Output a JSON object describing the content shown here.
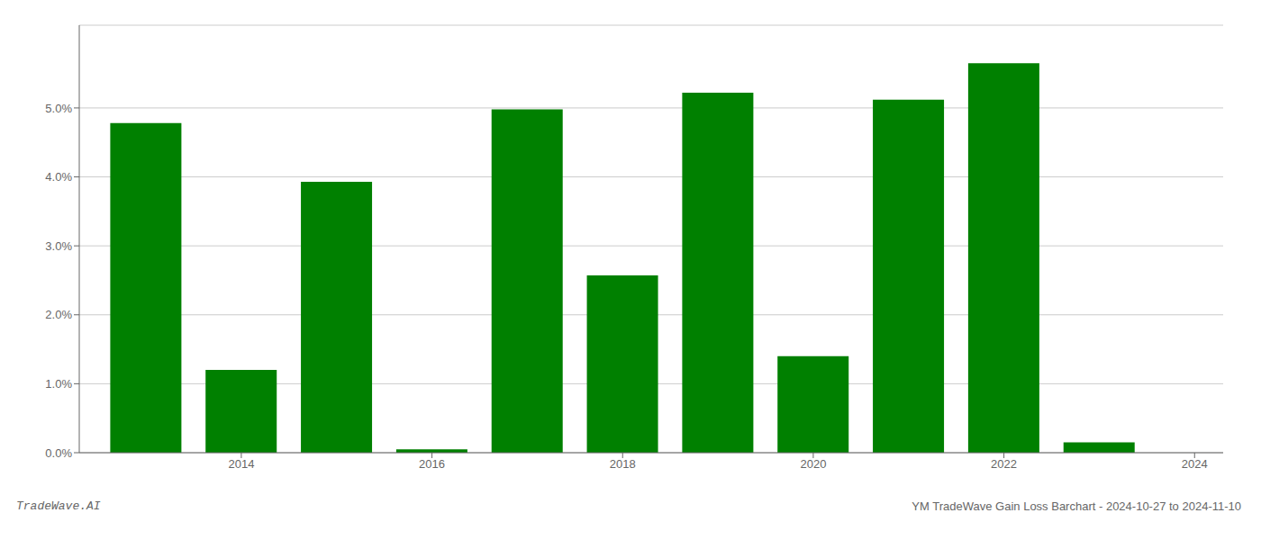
{
  "chart_data": {
    "type": "bar",
    "x": [
      2013,
      2014,
      2015,
      2016,
      2017,
      2018,
      2019,
      2020,
      2021,
      2022,
      2023
    ],
    "values": [
      0.0478,
      0.012,
      0.0393,
      0.0005,
      0.0498,
      0.0257,
      0.0522,
      0.014,
      0.0512,
      0.0565,
      0.0015
    ],
    "color": "#008000",
    "xlim": [
      2012.3,
      2024.3
    ],
    "xticks": [
      2014,
      2016,
      2018,
      2020,
      2022,
      2024
    ],
    "ylim": [
      0,
      0.062
    ],
    "yticks": [
      {
        "value": 0.0,
        "label": "0.0%"
      },
      {
        "value": 0.01,
        "label": "1.0%"
      },
      {
        "value": 0.02,
        "label": "2.0%"
      },
      {
        "value": 0.03,
        "label": "3.0%"
      },
      {
        "value": 0.04,
        "label": "4.0%"
      },
      {
        "value": 0.05,
        "label": "5.0%"
      }
    ],
    "grid": true,
    "annotations": [
      "TradeWave.AI",
      "YM TradeWave Gain Loss Barchart - 2024-10-27 to 2024-11-10"
    ]
  }
}
